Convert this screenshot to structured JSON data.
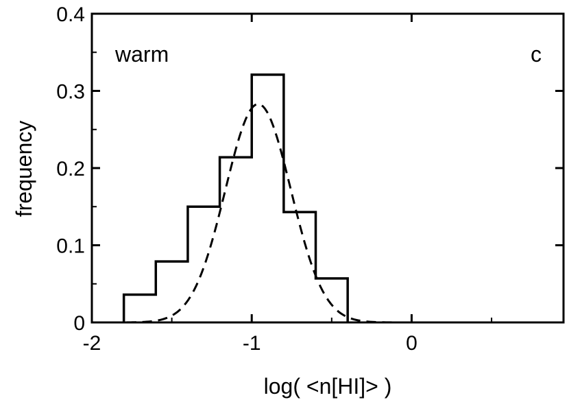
{
  "chart_data": {
    "type": "bar",
    "xlabel": "log( <n[HI]> )",
    "ylabel": "frequency",
    "xlim": [
      -2,
      0.95
    ],
    "ylim": [
      0,
      0.4
    ],
    "x_ticks": [
      -2,
      -1,
      0
    ],
    "x_tick_labels": [
      "-2",
      "-1",
      "0"
    ],
    "y_ticks": [
      0,
      0.1,
      0.2,
      0.3,
      0.4
    ],
    "y_tick_labels": [
      "0",
      "0.1",
      "0.2",
      "0.3",
      "0.4"
    ],
    "annotations": {
      "left": "warm",
      "right": "c"
    },
    "histogram": {
      "bin_edges": [
        -1.8,
        -1.6,
        -1.4,
        -1.2,
        -1.0,
        -0.8,
        -0.6,
        -0.4
      ],
      "values": [
        0.036,
        0.079,
        0.15,
        0.214,
        0.321,
        0.143,
        0.057
      ]
    },
    "fit_curve": {
      "style": "dashed",
      "shape": "gaussian",
      "mean": -0.96,
      "sigma": 0.205,
      "amplitude": 0.283
    },
    "grid": false,
    "legend": "none"
  }
}
